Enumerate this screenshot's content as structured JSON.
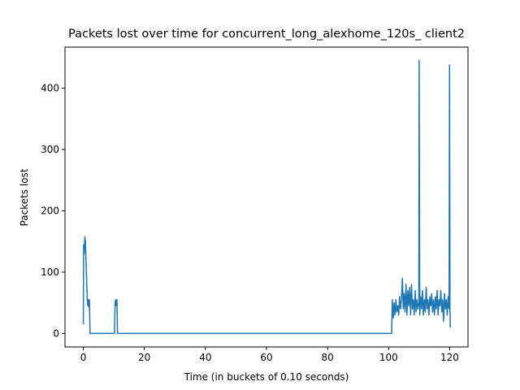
{
  "chart_data": {
    "type": "line",
    "title": "Packets lost over time for concurrent_long_alexhome_120s_ client2",
    "x_label": "Time (in buckets of 0.10 seconds)",
    "y_label": "Packets lost",
    "color": "#1f77b4",
    "x": [
      0,
      0.1,
      0.3,
      0.5,
      0.7,
      1.0,
      1.3,
      1.5,
      1.7,
      1.9,
      2.0,
      2.2,
      5,
      10.2,
      10.4,
      10.6,
      10.8,
      11.0,
      11.2,
      30,
      60,
      101.0,
      101.2,
      101.5,
      101.8,
      102.1,
      102.4,
      102.7,
      103.0,
      103.3,
      103.6,
      103.9,
      104.2,
      104.5,
      104.8,
      105.1,
      105.4,
      105.7,
      106.0,
      106.3,
      106.6,
      106.9,
      107.2,
      107.5,
      107.8,
      108.1,
      108.4,
      108.7,
      109.0,
      109.3,
      109.6,
      109.9,
      110.0,
      110.2,
      110.5,
      110.8,
      111.1,
      111.4,
      111.7,
      112.0,
      112.3,
      112.6,
      112.9,
      113.2,
      113.5,
      113.8,
      114.1,
      114.4,
      114.7,
      115.0,
      115.3,
      115.6,
      115.9,
      116.2,
      116.5,
      116.8,
      117.1,
      117.4,
      117.7,
      118.0,
      118.3,
      118.6,
      118.9,
      119.2,
      119.5,
      119.8,
      119.95,
      120.1,
      120.2
    ],
    "values": [
      15,
      145,
      130,
      158,
      150,
      100,
      55,
      45,
      55,
      42,
      55,
      0,
      0,
      0,
      50,
      55,
      45,
      55,
      0,
      0,
      0,
      0,
      55,
      25,
      50,
      30,
      55,
      35,
      45,
      30,
      60,
      40,
      55,
      90,
      40,
      65,
      35,
      80,
      30,
      70,
      45,
      75,
      30,
      80,
      40,
      55,
      30,
      70,
      35,
      55,
      40,
      50,
      445,
      30,
      60,
      40,
      70,
      30,
      55,
      35,
      75,
      40,
      55,
      30,
      60,
      45,
      65,
      35,
      55,
      30,
      60,
      40,
      70,
      30,
      55,
      45,
      70,
      35,
      55,
      20,
      65,
      40,
      55,
      30,
      60,
      40,
      438,
      40,
      10
    ],
    "xlim": [
      -6,
      126
    ],
    "ylim": [
      -22,
      467
    ],
    "xticks": [
      0,
      20,
      40,
      60,
      80,
      100,
      120
    ],
    "yticks": [
      0,
      100,
      200,
      300,
      400
    ]
  }
}
